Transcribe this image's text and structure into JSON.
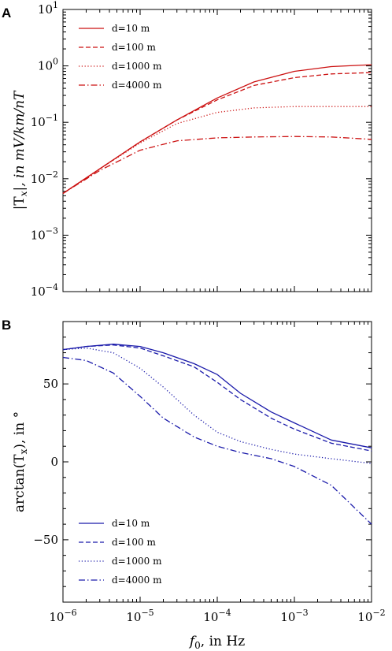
{
  "chart_data": [
    {
      "type": "line",
      "panel": "A",
      "ylabel": "|T_x|, in mV/km/nT",
      "xlabel": "",
      "xscale": "log",
      "yscale": "log",
      "xlim": [
        1e-06,
        0.01
      ],
      "ylim": [
        0.0001,
        10
      ],
      "color": "#cc1111",
      "legend_position": "top-left",
      "x_ticks": [
        {
          "base": "",
          "exp": ""
        },
        {
          "base": "",
          "exp": ""
        },
        {
          "base": "",
          "exp": ""
        },
        {
          "base": "",
          "exp": ""
        },
        {
          "base": "",
          "exp": ""
        }
      ],
      "y_ticks": [
        {
          "value": 0.0001,
          "base": "10",
          "exp": "−4"
        },
        {
          "value": 0.001,
          "base": "10",
          "exp": "−3"
        },
        {
          "value": 0.01,
          "base": "10",
          "exp": "−2"
        },
        {
          "value": 0.1,
          "base": "10",
          "exp": "−1"
        },
        {
          "value": 1,
          "base": "10",
          "exp": "0"
        },
        {
          "value": 10,
          "base": "10",
          "exp": "1"
        }
      ],
      "series": [
        {
          "name": "d=10 m",
          "dash": "solid",
          "x": [
            1e-06,
            3e-06,
            1e-05,
            3e-05,
            0.0001,
            0.0003,
            0.001,
            0.003,
            0.01
          ],
          "y": [
            0.0055,
            0.015,
            0.045,
            0.11,
            0.27,
            0.52,
            0.8,
            0.97,
            1.05
          ]
        },
        {
          "name": "d=100 m",
          "dash": "dashed",
          "x": [
            1e-06,
            3e-06,
            1e-05,
            3e-05,
            0.0001,
            0.0003,
            0.001,
            0.003,
            0.01
          ],
          "y": [
            0.0055,
            0.015,
            0.045,
            0.11,
            0.25,
            0.45,
            0.62,
            0.72,
            0.76
          ]
        },
        {
          "name": "d=1000 m",
          "dash": "dotted",
          "x": [
            1e-06,
            3e-06,
            1e-05,
            3e-05,
            0.0001,
            0.0003,
            0.001,
            0.003,
            0.01
          ],
          "y": [
            0.0055,
            0.015,
            0.043,
            0.095,
            0.15,
            0.18,
            0.19,
            0.19,
            0.19
          ]
        },
        {
          "name": "d=4000 m",
          "dash": "dashdot",
          "x": [
            1e-06,
            3e-06,
            1e-05,
            3e-05,
            0.0001,
            0.0003,
            0.001,
            0.003,
            0.01
          ],
          "y": [
            0.0055,
            0.014,
            0.032,
            0.047,
            0.053,
            0.055,
            0.056,
            0.055,
            0.05
          ]
        }
      ]
    },
    {
      "type": "line",
      "panel": "B",
      "ylabel": "arctan(T_x), in °",
      "xlabel": "f_0, in Hz",
      "xscale": "log",
      "yscale": "linear",
      "xlim": [
        1e-06,
        0.01
      ],
      "ylim": [
        -90,
        90
      ],
      "color": "#1a1aaa",
      "legend_position": "bottom-left",
      "x_ticks": [
        {
          "value": 1e-06,
          "base": "10",
          "exp": "−6"
        },
        {
          "value": 1e-05,
          "base": "10",
          "exp": "−5"
        },
        {
          "value": 0.0001,
          "base": "10",
          "exp": "−4"
        },
        {
          "value": 0.001,
          "base": "10",
          "exp": "−3"
        },
        {
          "value": 0.01,
          "base": "10",
          "exp": "−2"
        }
      ],
      "y_ticks": [
        {
          "value": 50,
          "base": "50",
          "exp": ""
        },
        {
          "value": 0,
          "base": "0",
          "exp": ""
        },
        {
          "value": -50,
          "base": "−50",
          "exp": ""
        }
      ],
      "series": [
        {
          "name": "d=10 m",
          "dash": "solid",
          "x": [
            1e-06,
            2e-06,
            4.5e-06,
            1e-05,
            2e-05,
            5e-05,
            0.0001,
            0.0002,
            0.0005,
            0.001,
            0.003,
            0.01
          ],
          "y": [
            72,
            74,
            75.5,
            74,
            70,
            63,
            56,
            44,
            32,
            25,
            14,
            9
          ]
        },
        {
          "name": "d=100 m",
          "dash": "dashed",
          "x": [
            1e-06,
            2e-06,
            4.5e-06,
            1e-05,
            2e-05,
            5e-05,
            0.0001,
            0.0002,
            0.0005,
            0.001,
            0.003,
            0.01
          ],
          "y": [
            72,
            74,
            75,
            73,
            68,
            61,
            51,
            40,
            28,
            21,
            12,
            7
          ]
        },
        {
          "name": "d=1000 m",
          "dash": "dotted",
          "x": [
            1e-06,
            2e-06,
            4.5e-06,
            1e-05,
            2e-05,
            5e-05,
            0.0001,
            0.0002,
            0.0005,
            0.001,
            0.003,
            0.01
          ],
          "y": [
            72,
            73,
            70,
            60,
            48,
            30,
            19,
            13,
            8,
            5,
            2,
            -1
          ]
        },
        {
          "name": "d=4000 m",
          "dash": "dashdot",
          "x": [
            1e-06,
            2e-06,
            4.5e-06,
            1e-05,
            2e-05,
            5e-05,
            0.0001,
            0.0002,
            0.0005,
            0.001,
            0.003,
            0.01
          ],
          "y": [
            67,
            65,
            57,
            42,
            28,
            16,
            10,
            6,
            2,
            -3,
            -15,
            -40
          ]
        }
      ]
    }
  ]
}
